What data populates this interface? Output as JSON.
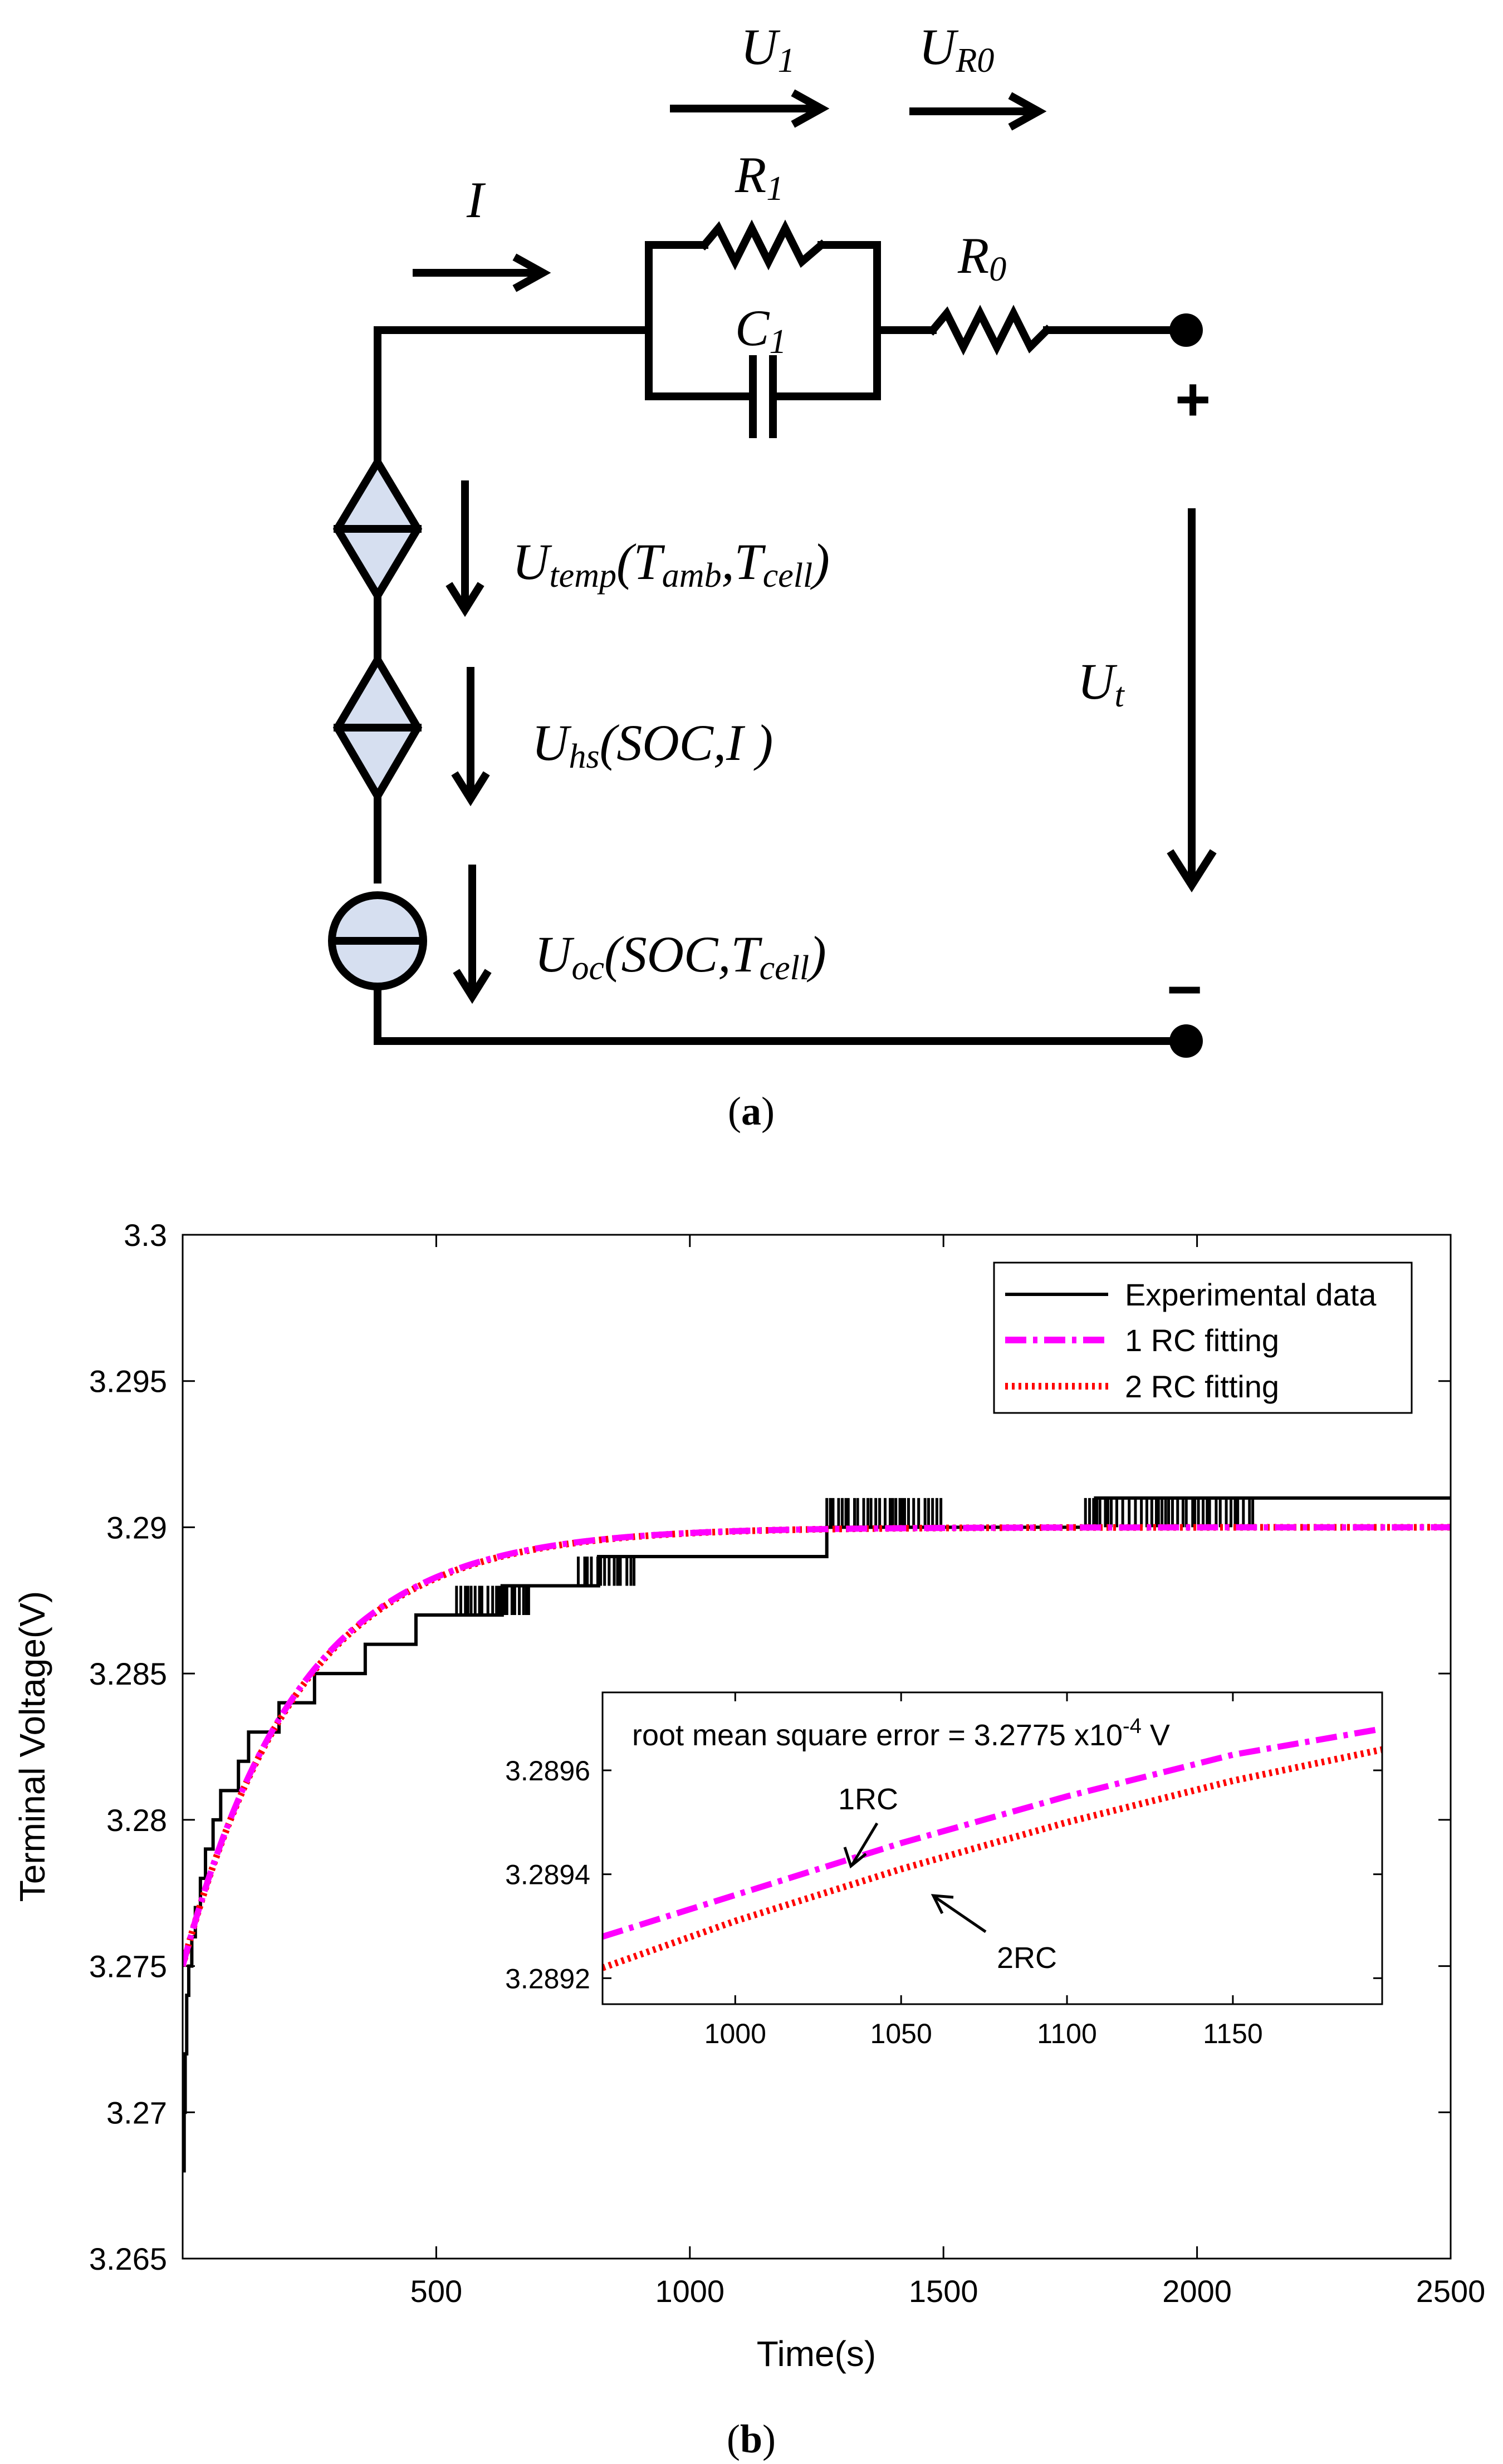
{
  "circuit": {
    "labels": {
      "u1_main": "U",
      "u1_sub": "1",
      "ur0_main": "U",
      "ur0_sub": "R0",
      "i": "I",
      "r1_main": "R",
      "r1_sub": "1",
      "c1_main": "C",
      "c1_sub": "1",
      "r0_main": "R",
      "r0_sub": "0",
      "plus": "+",
      "minus": "−",
      "ut_main": "U",
      "ut_sub": "t",
      "utemp_main": "U",
      "utemp_sub": "temp",
      "utemp_open": "(",
      "utemp_t1": "T",
      "utemp_t1_sub": "amb",
      "utemp_comma": ",",
      "utemp_t2": "T",
      "utemp_t2_sub": "cell",
      "utemp_close": ")",
      "uhs_main": "U",
      "uhs_sub": "hs",
      "uhs_args": "(SOC,I )",
      "uoc_main": "U",
      "uoc_sub": "oc",
      "uoc_args": "(SOC,T",
      "uoc_t_sub": "cell",
      "uoc_close": ")"
    },
    "caption_open": "(",
    "caption_letter": "a",
    "caption_close": ")"
  },
  "plot": {
    "caption_open": "(",
    "caption_letter": "b",
    "caption_close": ")",
    "legend": [
      "Experimental data",
      "1 RC fitting",
      "2 RC fitting"
    ],
    "inset": {
      "annotation_prefix": "root mean square error = 3.2775 x10",
      "annotation_exp": "-4",
      "annotation_suffix": " V",
      "label_1rc": "1RC",
      "label_2rc": "2RC"
    }
  },
  "colors": {
    "experimental": "#000000",
    "rc1": "#ff00ff",
    "rc2": "#ff0000",
    "source_fill": "#d6dff0"
  },
  "chart_data": [
    {
      "type": "line",
      "title": "",
      "xlabel": "Time(s)",
      "ylabel": "Terminal Voltage(V)",
      "xlim": [
        0,
        2500
      ],
      "ylim": [
        3.265,
        3.3
      ],
      "xticks": [
        500,
        1000,
        1500,
        2000,
        2500
      ],
      "yticks": [
        3.265,
        3.27,
        3.275,
        3.28,
        3.285,
        3.29,
        3.295,
        3.3
      ],
      "ytick_labels": [
        "3.265",
        "3.27",
        "3.275",
        "3.28",
        "3.285",
        "3.29",
        "3.295",
        "3.3"
      ],
      "legend_position": "top-right",
      "grid": false,
      "series": [
        {
          "name": "Experimental data",
          "style": "solid",
          "x": [
            0,
            3,
            5,
            8,
            12,
            18,
            25,
            35,
            45,
            60,
            75,
            90,
            110,
            130,
            160,
            190,
            220,
            260,
            310,
            360,
            460,
            560,
            630,
            720,
            820,
            900,
            1270,
            1500,
            1800,
            2500
          ],
          "y": [
            3.268,
            3.27,
            3.272,
            3.274,
            3.275,
            3.276,
            3.277,
            3.278,
            3.279,
            3.28,
            3.281,
            3.281,
            3.282,
            3.283,
            3.283,
            3.284,
            3.284,
            3.285,
            3.285,
            3.286,
            3.287,
            3.287,
            3.288,
            3.288,
            3.289,
            3.289,
            3.29,
            3.29,
            3.291,
            3.291
          ],
          "noise_ranges": [
            [
              540,
              640
            ],
            [
              620,
              690
            ],
            [
              780,
              890
            ],
            [
              1270,
              1500
            ],
            [
              1780,
              2110
            ]
          ]
        },
        {
          "name": "1 RC fitting",
          "style": "dashdot",
          "model": {
            "u0": 3.275,
            "u_inf": 3.29,
            "tau": 230
          },
          "x": [
            0,
            100,
            200,
            300,
            400,
            500,
            600,
            800,
            1000,
            1200,
            1500,
            2000,
            2500
          ],
          "y": [
            3.275,
            3.2804,
            3.2837,
            3.2858,
            3.2874,
            3.2881,
            3.2885,
            3.2889,
            3.2892,
            3.2897,
            3.2899,
            3.29,
            3.29
          ]
        },
        {
          "name": "2 RC fitting",
          "style": "dotted",
          "model": {
            "u0": 3.275,
            "u_inf": 3.29,
            "tau": 232
          },
          "x": [
            0,
            100,
            200,
            300,
            400,
            500,
            600,
            800,
            1000,
            1200,
            1500,
            2000,
            2500
          ],
          "y": [
            3.275,
            3.2803,
            3.2836,
            3.2857,
            3.2873,
            3.288,
            3.2885,
            3.2889,
            3.2892,
            3.2896,
            3.2899,
            3.29,
            3.29
          ]
        }
      ]
    },
    {
      "type": "line",
      "title": "",
      "xlim": [
        960,
        1195
      ],
      "ylim": [
        3.28915,
        3.28975
      ],
      "xticks": [
        1000,
        1050,
        1100,
        1150
      ],
      "yticks": [
        3.2892,
        3.2894,
        3.2896
      ],
      "ytick_labels": [
        "3.2892",
        "3.2894",
        "3.2896"
      ],
      "series": [
        {
          "name": "1RC",
          "style": "dashdot",
          "x": [
            960,
            1000,
            1050,
            1100,
            1150,
            1195
          ],
          "y": [
            3.28928,
            3.28936,
            3.28946,
            3.28955,
            3.28963,
            3.28968
          ]
        },
        {
          "name": "2RC",
          "style": "dotted",
          "x": [
            960,
            1000,
            1050,
            1100,
            1150,
            1195
          ],
          "y": [
            3.28922,
            3.28931,
            3.28941,
            3.2895,
            3.28958,
            3.28964
          ]
        }
      ]
    }
  ]
}
